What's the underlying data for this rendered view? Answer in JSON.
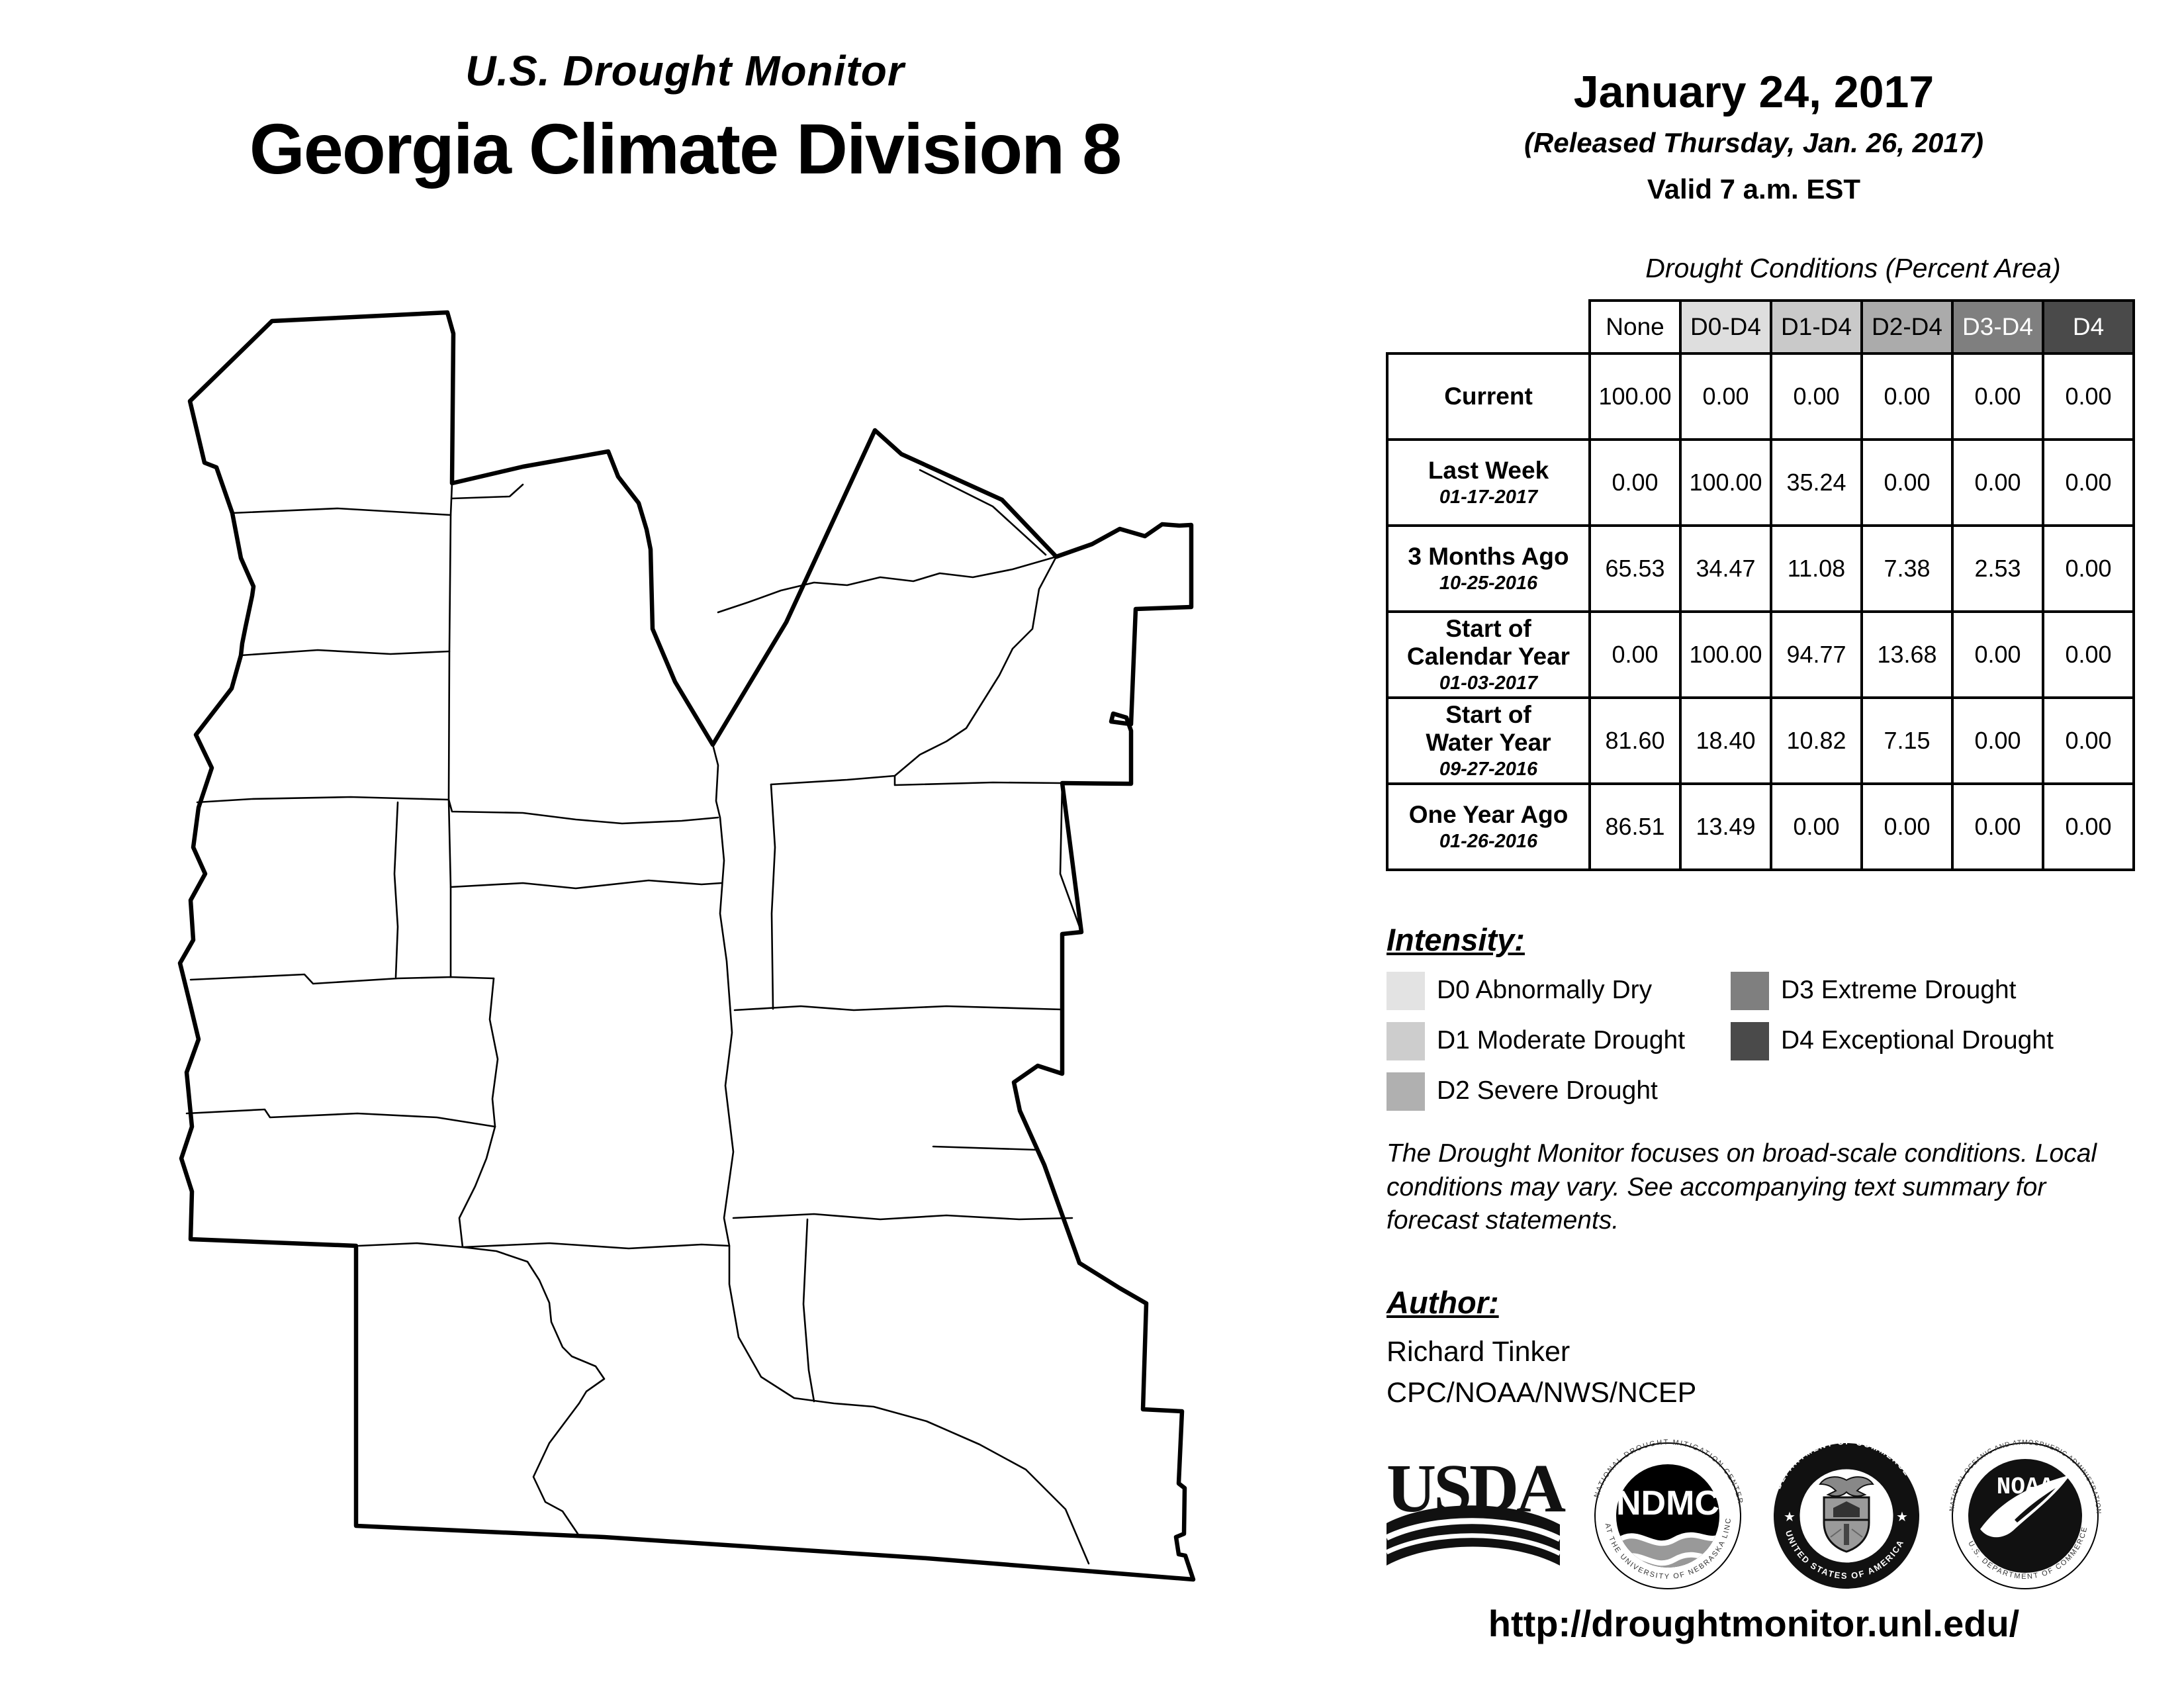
{
  "header": {
    "kicker": "U.S. Drought Monitor",
    "title": "Georgia Climate Division 8",
    "date": "January 24, 2017",
    "released": "(Released Thursday, Jan. 26, 2017)",
    "valid": "Valid 7 a.m. EST"
  },
  "table": {
    "title": "Drought Conditions (Percent Area)",
    "columns": [
      "None",
      "D0-D4",
      "D1-D4",
      "D2-D4",
      "D3-D4",
      "D4"
    ],
    "column_bg": [
      "#ffffff",
      "#dedede",
      "#c9c9c9",
      "#ababab",
      "#7f7f7f",
      "#4a4a4a"
    ],
    "column_fg": [
      "#000000",
      "#000000",
      "#000000",
      "#000000",
      "#ffffff",
      "#ffffff"
    ],
    "rows": [
      {
        "label": "Current",
        "date": "",
        "values": [
          "100.00",
          "0.00",
          "0.00",
          "0.00",
          "0.00",
          "0.00"
        ]
      },
      {
        "label": "Last Week",
        "date": "01-17-2017",
        "values": [
          "0.00",
          "100.00",
          "35.24",
          "0.00",
          "0.00",
          "0.00"
        ]
      },
      {
        "label": "3 Months Ago",
        "date": "10-25-2016",
        "values": [
          "65.53",
          "34.47",
          "11.08",
          "7.38",
          "2.53",
          "0.00"
        ]
      },
      {
        "label": "Start of\nCalendar Year",
        "date": "01-03-2017",
        "values": [
          "0.00",
          "100.00",
          "94.77",
          "13.68",
          "0.00",
          "0.00"
        ]
      },
      {
        "label": "Start of\nWater Year",
        "date": "09-27-2016",
        "values": [
          "81.60",
          "18.40",
          "10.82",
          "7.15",
          "0.00",
          "0.00"
        ]
      },
      {
        "label": "One Year Ago",
        "date": "01-26-2016",
        "values": [
          "86.51",
          "13.49",
          "0.00",
          "0.00",
          "0.00",
          "0.00"
        ]
      }
    ]
  },
  "intensity": {
    "heading": "Intensity:",
    "items": [
      {
        "label": "D0 Abnormally Dry",
        "color": "#e3e3e3",
        "col": 0,
        "row": 0
      },
      {
        "label": "D1 Moderate Drought",
        "color": "#cdcdcd",
        "col": 0,
        "row": 1
      },
      {
        "label": "D2 Severe Drought",
        "color": "#b0b0b0",
        "col": 0,
        "row": 2
      },
      {
        "label": "D3 Extreme Drought",
        "color": "#7f7f7f",
        "col": 1,
        "row": 0
      },
      {
        "label": "D4 Exceptional Drought",
        "color": "#4a4a4a",
        "col": 1,
        "row": 1
      }
    ]
  },
  "disclaimer": "The Drought Monitor focuses on broad-scale conditions. Local conditions may vary. See accompanying text summary for forecast statements.",
  "author": {
    "heading": "Author:",
    "name": "Richard Tinker",
    "org": "CPC/NOAA/NWS/NCEP"
  },
  "logos": {
    "usda": "USDA",
    "ndmc": "NDMC",
    "ndmc_ring_top": "NATIONAL DROUGHT MITIGATION CENTER",
    "ndmc_ring_bottom": "AT THE UNIVERSITY OF NEBRASKA LINCOLN",
    "doc_ring_top": "DEPARTMENT OF COMMERCE",
    "doc_ring_bottom": "UNITED STATES OF AMERICA",
    "noaa": "NOAA",
    "noaa_ring_top": "NATIONAL OCEANIC AND ATMOSPHERIC ADMINISTRATION",
    "noaa_ring_bottom": "U.S. DEPARTMENT OF COMMERCE"
  },
  "url": "http://droughtmonitor.unl.edu/"
}
